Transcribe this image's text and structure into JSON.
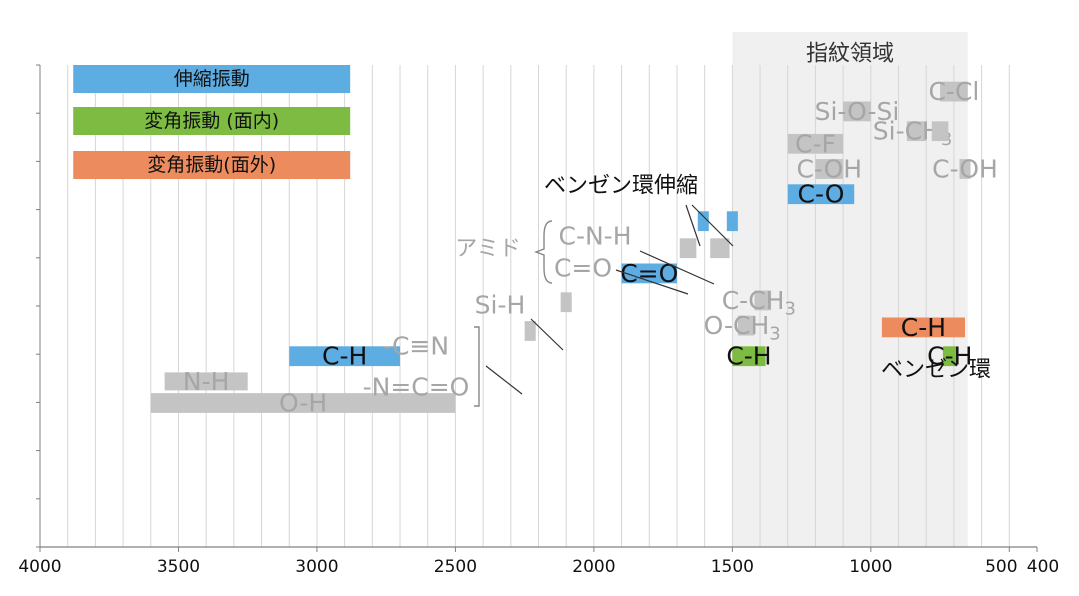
{
  "chart_data": {
    "type": "bar",
    "title": "",
    "xlabel": "",
    "ylabel": "",
    "xlim": [
      4000,
      400
    ],
    "x_reversed": true,
    "grid": true,
    "x_ticks": [
      4000,
      3500,
      3000,
      2500,
      2000,
      1500,
      1000,
      500,
      400
    ],
    "x_tick_labels": [
      "4000",
      "3500",
      "3000",
      "2500",
      "2000",
      "1500",
      "1000",
      "500",
      "400"
    ],
    "colors": {
      "stretch": "#5dade2",
      "bend_in": "#7dbb42",
      "bend_out": "#ec8b5e",
      "gray": "#c4c4c4",
      "fingerprint": "#f0f0f0",
      "text_gray": "#a6a6a6",
      "text_dark": "#111111"
    },
    "legend": [
      {
        "label": "伸縮振動",
        "color": "stretch",
        "x": [
          3880,
          2880
        ],
        "row": 0
      },
      {
        "label": "変角振動 (面内)",
        "color": "bend_in",
        "x": [
          3880,
          2880
        ],
        "row": 1
      },
      {
        "label": "変角振動(面外)",
        "color": "bend_out",
        "x": [
          3880,
          2880
        ],
        "row": 2
      }
    ],
    "region": {
      "label": "指紋領域",
      "x": [
        1500,
        650
      ]
    },
    "bands": [
      {
        "label": "O-H",
        "x": [
          3600,
          2500
        ],
        "row": 9.0,
        "h": 0.55,
        "color": "gray",
        "text": "text_gray"
      },
      {
        "label": "N-H",
        "x": [
          3550,
          3250
        ],
        "row": 8.4,
        "h": 0.5,
        "color": "gray",
        "text": "text_gray"
      },
      {
        "label": "C-H",
        "x": [
          3100,
          2700
        ],
        "row": 7.7,
        "h": 0.55,
        "color": "stretch",
        "text": "text_dark"
      },
      {
        "label": "",
        "x": [
          2250,
          2210
        ],
        "row": 7.0,
        "h": 0.55,
        "color": "gray",
        "text": "text_gray"
      },
      {
        "label": "",
        "x": [
          2120,
          2080
        ],
        "row": 6.2,
        "h": 0.55,
        "color": "gray",
        "text": "text_gray"
      },
      {
        "label": "C=O",
        "x": [
          1900,
          1700
        ],
        "row": 5.4,
        "h": 0.55,
        "color": "stretch",
        "text": "text_dark"
      },
      {
        "label": "",
        "x": [
          1690,
          1630
        ],
        "row": 4.7,
        "h": 0.55,
        "color": "gray",
        "text": "text_gray"
      },
      {
        "label": "",
        "x": [
          1580,
          1510
        ],
        "row": 4.7,
        "h": 0.55,
        "color": "gray",
        "text": "text_gray"
      },
      {
        "label": "",
        "x": [
          1625,
          1585
        ],
        "row": 3.95,
        "h": 0.55,
        "color": "stretch",
        "text": "text_dark"
      },
      {
        "label": "",
        "x": [
          1520,
          1480
        ],
        "row": 3.95,
        "h": 0.55,
        "color": "stretch",
        "text": "text_dark"
      },
      {
        "label": "C-O",
        "x": [
          1300,
          1060
        ],
        "row": 3.2,
        "h": 0.55,
        "color": "stretch",
        "text": "text_dark"
      },
      {
        "label": "C-F",
        "x": [
          1300,
          1100
        ],
        "row": 1.8,
        "h": 0.55,
        "color": "gray",
        "text": "text_gray"
      },
      {
        "label": "C-OH",
        "x": [
          1200,
          1100
        ],
        "row": 2.5,
        "h": 0.55,
        "color": "gray",
        "text": "text_gray"
      },
      {
        "label": "Si-O-Si",
        "x": [
          1100,
          1000
        ],
        "row": 0.9,
        "h": 0.55,
        "color": "gray",
        "text": "text_gray"
      },
      {
        "label": "C-Cl",
        "x": [
          750,
          650
        ],
        "row": 0.35,
        "h": 0.55,
        "color": "gray",
        "text": "text_gray"
      },
      {
        "label": "Si-CH",
        "sub": "3",
        "x": [
          870,
          800
        ],
        "row": 1.45,
        "h": 0.55,
        "color": "gray",
        "text": "text_gray"
      },
      {
        "label": "",
        "x": [
          780,
          720
        ],
        "row": 1.45,
        "h": 0.55,
        "color": "gray",
        "text": "text_gray"
      },
      {
        "label": "C-OH",
        "x": [
          680,
          640
        ],
        "row": 2.5,
        "h": 0.55,
        "color": "gray",
        "text": "text_gray"
      },
      {
        "label": "C-CH",
        "sub": "3",
        "x": [
          1420,
          1360
        ],
        "row": 6.15,
        "h": 0.55,
        "color": "gray",
        "text": "text_gray"
      },
      {
        "label": "O-CH",
        "sub": "3",
        "x": [
          1480,
          1420
        ],
        "row": 6.85,
        "h": 0.55,
        "color": "gray",
        "text": "text_gray"
      },
      {
        "label": "C-H",
        "x": [
          1500,
          1380
        ],
        "row": 7.7,
        "h": 0.55,
        "color": "bend_in",
        "text": "text_dark"
      },
      {
        "label": "C-H",
        "x": [
          960,
          660
        ],
        "row": 6.9,
        "h": 0.55,
        "color": "bend_out",
        "text": "text_dark"
      },
      {
        "label": "C-H",
        "x": [
          740,
          690
        ],
        "row": 7.7,
        "h": 0.55,
        "color": "bend_in",
        "text": "text_dark"
      }
    ],
    "annotations": {
      "benzene_stretch": "ベンゼン環伸縮",
      "benzene_ring": "ベンゼン環",
      "amide": "アミド",
      "amide_cnh": "C-N-H",
      "amide_co": "C=O",
      "sih": "Si-H",
      "cn": "-C≡N",
      "ncn": "-N=C=O"
    }
  }
}
